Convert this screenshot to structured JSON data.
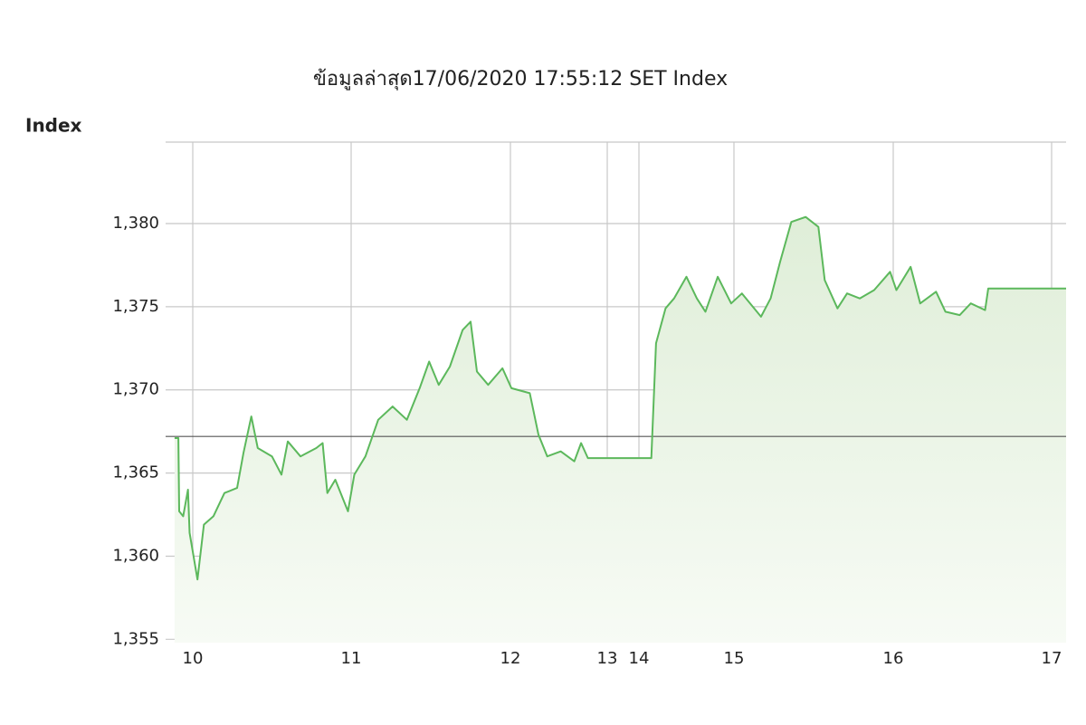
{
  "chart_data": {
    "type": "line",
    "title": "ข้อมูลล่าสุด17/06/2020 17:55:12  SET Index",
    "y_label": "Index",
    "x": [
      9.886,
      9.91,
      9.915,
      9.94,
      9.97,
      9.98,
      10.03,
      10.07,
      10.13,
      10.2,
      10.28,
      10.32,
      10.37,
      10.41,
      10.5,
      10.56,
      10.6,
      10.68,
      10.78,
      10.82,
      10.85,
      10.9,
      10.98,
      11.02,
      11.09,
      11.17,
      11.26,
      11.35,
      11.43,
      11.49,
      11.55,
      11.62,
      11.7,
      11.75,
      11.79,
      11.86,
      11.95,
      12.01,
      12.2,
      12.29,
      12.38,
      12.52,
      12.66,
      12.73,
      12.8,
      14.13,
      14.18,
      14.28,
      14.37,
      14.5,
      14.61,
      14.7,
      14.83,
      14.97,
      15.05,
      15.17,
      15.23,
      15.29,
      15.36,
      15.45,
      15.53,
      15.57,
      15.65,
      15.71,
      15.79,
      15.88,
      15.98,
      16.02,
      16.11,
      16.17,
      16.27,
      16.33,
      16.42,
      16.49,
      16.58,
      16.6,
      17.1
    ],
    "series": [
      {
        "name": "SET Index",
        "color": "#5cb85c",
        "values": [
          1367.1,
          1367.1,
          1362.7,
          1362.4,
          1364.0,
          1361.4,
          1358.6,
          1361.9,
          1362.4,
          1363.8,
          1364.1,
          1366.2,
          1368.4,
          1366.5,
          1366.0,
          1364.9,
          1366.9,
          1366.0,
          1366.5,
          1366.8,
          1363.8,
          1364.6,
          1362.7,
          1364.9,
          1366.0,
          1368.2,
          1369.0,
          1368.2,
          1370.1,
          1371.7,
          1370.3,
          1371.4,
          1373.6,
          1374.1,
          1371.1,
          1370.3,
          1371.3,
          1370.1,
          1369.8,
          1367.3,
          1366.0,
          1366.3,
          1365.7,
          1366.8,
          1365.9,
          1365.9,
          1372.8,
          1374.9,
          1375.5,
          1376.8,
          1375.5,
          1374.7,
          1376.8,
          1375.2,
          1375.8,
          1374.4,
          1375.5,
          1377.7,
          1380.1,
          1380.4,
          1379.8,
          1376.6,
          1374.9,
          1375.8,
          1375.5,
          1376.0,
          1377.1,
          1376.0,
          1377.4,
          1375.2,
          1375.9,
          1374.7,
          1374.5,
          1375.2,
          1374.8,
          1376.1,
          1376.1
        ]
      }
    ],
    "reference_line": 1367.2,
    "xlim": [
      9.83,
      17.1
    ],
    "xticks": [
      10,
      11,
      12,
      13,
      14,
      15,
      16,
      17
    ],
    "ylim": [
      1354.8,
      1384.9
    ],
    "yticks": [
      {
        "value": 1355,
        "label": "1,355"
      },
      {
        "value": 1360,
        "label": "1,360"
      },
      {
        "value": 1365,
        "label": "1,365"
      },
      {
        "value": 1370,
        "label": "1,370"
      },
      {
        "value": 1375,
        "label": "1,375"
      },
      {
        "value": 1380,
        "label": "1,380"
      }
    ],
    "grid": true
  }
}
